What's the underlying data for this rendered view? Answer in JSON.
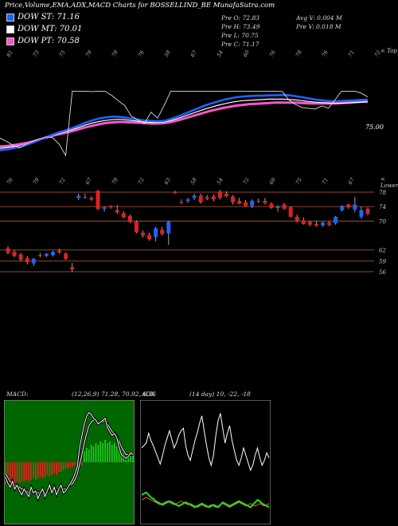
{
  "header": {
    "title": "Price,Volume,EMA,ADX,MACD Charts for BOSSELLIND_BE MunafaSutra.com"
  },
  "legend": [
    {
      "label": "DOW ST: 71.16",
      "color": "#1e63ff"
    },
    {
      "label": "DOW MT: 70.01",
      "color": "#ffffff"
    },
    {
      "label": "DOW PT: 70.58",
      "color": "#ff55cc"
    }
  ],
  "stats": {
    "col1": [
      "Pre  O: 72.83",
      "Pre  H: 73.49",
      "Pre  L: 70.75",
      "Pre  C: 71.17"
    ],
    "col2": [
      "Avg V: 0.004  M",
      "Pre  V: 0.018  M"
    ]
  },
  "labels": {
    "top_right": "< Top",
    "lower_right": "< Lower",
    "price_tag": "75.00",
    "top_numbers": [
      "81",
      "73",
      "75",
      "79",
      "78",
      "76",
      "58",
      "67",
      "54",
      "60",
      "76",
      "78",
      "76",
      "71",
      "72"
    ],
    "mid_numbers": [
      "76",
      "79",
      "72",
      "67",
      "78",
      "72",
      "63",
      "58",
      "54",
      "72",
      "69",
      "75",
      "71",
      "67"
    ]
  },
  "price_levels": [
    "78",
    "74",
    "70",
    "62",
    "59",
    "56"
  ],
  "macd": {
    "title": "MACD: ",
    "params": "(12,26,9) 71.28, 70.92, 0.36"
  },
  "adx": {
    "title": "ADX",
    "params": "(14 day) 10, -22, -18"
  },
  "colors": {
    "up": "#1e63ff",
    "down": "#e02020",
    "ema_short": "#1e63ff",
    "ema_mid": "#ffffff",
    "ema_long": "#ff55cc",
    "macd_pos": "#22cc22",
    "macd_neg": "#ee2222"
  },
  "chart_data": {
    "type": "candlestick",
    "ylim": [
      54,
      80
    ],
    "candles": [
      {
        "o": 62.5,
        "h": 63.0,
        "l": 60.8,
        "c": 61.2
      },
      {
        "o": 61.5,
        "h": 62.0,
        "l": 60.0,
        "c": 60.3
      },
      {
        "o": 60.8,
        "h": 61.2,
        "l": 58.8,
        "c": 59.3
      },
      {
        "o": 59.8,
        "h": 60.4,
        "l": 58.0,
        "c": 58.6
      },
      {
        "o": 58.3,
        "h": 59.8,
        "l": 57.6,
        "c": 59.6
      },
      {
        "o": 60.6,
        "h": 61.2,
        "l": 60.0,
        "c": 60.3
      },
      {
        "o": 60.4,
        "h": 61.2,
        "l": 60.0,
        "c": 60.9
      },
      {
        "o": 60.6,
        "h": 61.8,
        "l": 60.2,
        "c": 61.5
      },
      {
        "o": 61.8,
        "h": 62.4,
        "l": 61.0,
        "c": 61.3
      },
      {
        "o": 61.0,
        "h": 61.4,
        "l": 59.2,
        "c": 59.6
      },
      {
        "o": 57.3,
        "h": 58.4,
        "l": 56.0,
        "c": 56.6
      },
      {
        "o": 76.4,
        "h": 77.6,
        "l": 75.8,
        "c": 77.0
      },
      {
        "o": 76.6,
        "h": 77.6,
        "l": 76.2,
        "c": 76.6
      },
      {
        "o": 76.4,
        "h": 76.8,
        "l": 75.6,
        "c": 75.9
      },
      {
        "o": 78.4,
        "h": 78.6,
        "l": 73.0,
        "c": 73.4
      },
      {
        "o": 73.4,
        "h": 74.0,
        "l": 72.6,
        "c": 73.8
      },
      {
        "o": 74.2,
        "h": 74.4,
        "l": 73.4,
        "c": 73.8
      },
      {
        "o": 73.0,
        "h": 74.4,
        "l": 72.0,
        "c": 72.4
      },
      {
        "o": 72.2,
        "h": 72.8,
        "l": 70.8,
        "c": 71.0
      },
      {
        "o": 71.4,
        "h": 71.8,
        "l": 69.4,
        "c": 69.7
      },
      {
        "o": 69.8,
        "h": 70.2,
        "l": 66.6,
        "c": 66.9
      },
      {
        "o": 66.8,
        "h": 67.4,
        "l": 65.4,
        "c": 66.0
      },
      {
        "o": 66.2,
        "h": 66.8,
        "l": 64.6,
        "c": 65.0
      },
      {
        "o": 65.6,
        "h": 68.4,
        "l": 64.4,
        "c": 68.0
      },
      {
        "o": 67.6,
        "h": 68.4,
        "l": 66.0,
        "c": 66.4
      },
      {
        "o": 66.6,
        "h": 70.0,
        "l": 63.4,
        "c": 69.8
      },
      {
        "o": 78.0,
        "h": 78.4,
        "l": 77.5,
        "c": 77.8
      },
      {
        "o": 75.2,
        "h": 76.0,
        "l": 74.8,
        "c": 75.0
      },
      {
        "o": 75.6,
        "h": 76.4,
        "l": 75.0,
        "c": 76.0
      },
      {
        "o": 76.4,
        "h": 77.6,
        "l": 75.8,
        "c": 77.0
      },
      {
        "o": 77.0,
        "h": 77.6,
        "l": 74.8,
        "c": 75.2
      },
      {
        "o": 76.6,
        "h": 77.2,
        "l": 75.8,
        "c": 76.2
      },
      {
        "o": 76.8,
        "h": 77.4,
        "l": 75.4,
        "c": 76.0
      },
      {
        "o": 78.2,
        "h": 78.6,
        "l": 76.0,
        "c": 76.4
      },
      {
        "o": 77.6,
        "h": 78.2,
        "l": 76.6,
        "c": 76.8
      },
      {
        "o": 76.8,
        "h": 77.2,
        "l": 74.6,
        "c": 75.2
      },
      {
        "o": 75.6,
        "h": 76.4,
        "l": 74.6,
        "c": 74.8
      },
      {
        "o": 75.2,
        "h": 75.8,
        "l": 74.0,
        "c": 74.2
      },
      {
        "o": 74.2,
        "h": 76.0,
        "l": 73.6,
        "c": 75.6
      },
      {
        "o": 75.6,
        "h": 76.2,
        "l": 75.0,
        "c": 75.4
      },
      {
        "o": 75.6,
        "h": 76.4,
        "l": 74.6,
        "c": 75.0
      },
      {
        "o": 74.8,
        "h": 75.2,
        "l": 73.4,
        "c": 73.6
      },
      {
        "o": 73.6,
        "h": 74.4,
        "l": 72.6,
        "c": 74.0
      },
      {
        "o": 74.6,
        "h": 75.0,
        "l": 73.2,
        "c": 73.4
      },
      {
        "o": 73.8,
        "h": 74.0,
        "l": 71.0,
        "c": 71.2
      },
      {
        "o": 71.2,
        "h": 71.8,
        "l": 69.6,
        "c": 70.0
      },
      {
        "o": 70.2,
        "h": 71.0,
        "l": 69.0,
        "c": 69.2
      },
      {
        "o": 69.8,
        "h": 70.0,
        "l": 68.6,
        "c": 69.0
      },
      {
        "o": 69.2,
        "h": 70.0,
        "l": 68.4,
        "c": 68.8
      },
      {
        "o": 68.8,
        "h": 69.8,
        "l": 68.4,
        "c": 69.6
      },
      {
        "o": 69.6,
        "h": 70.0,
        "l": 68.6,
        "c": 69.0
      },
      {
        "o": 69.4,
        "h": 71.4,
        "l": 69.0,
        "c": 71.2
      },
      {
        "o": 73.0,
        "h": 74.4,
        "l": 72.6,
        "c": 74.2
      },
      {
        "o": 74.6,
        "h": 74.8,
        "l": 73.4,
        "c": 73.8
      },
      {
        "o": 73.2,
        "h": 76.6,
        "l": 72.4,
        "c": 74.6
      },
      {
        "o": 71.2,
        "h": 74.0,
        "l": 70.6,
        "c": 73.0
      },
      {
        "o": 73.4,
        "h": 73.8,
        "l": 71.6,
        "c": 72.0
      }
    ],
    "ema_short": [
      58,
      58.2,
      58.5,
      58.9,
      59.4,
      60,
      60.7,
      61.4,
      62.1,
      62.7,
      63.2,
      63.8,
      64.5,
      65.2,
      65.8,
      66.3,
      66.6,
      66.8,
      66.8,
      66.6,
      66.3,
      66,
      65.8,
      65.7,
      65.6,
      65.7,
      66.2,
      66.8,
      67.5,
      68.2,
      68.9,
      69.6,
      70.2,
      70.7,
      71.2,
      71.6,
      71.9,
      72.1,
      72.2,
      72.3,
      72.3,
      72.4,
      72.4,
      72.5,
      72.4,
      72.2,
      71.9,
      71.6,
      71.3,
      71.1,
      70.9,
      70.8,
      70.9,
      71.0,
      71.1,
      71.2,
      71.3
    ],
    "ema_mid": [
      58.5,
      58.7,
      58.9,
      59.2,
      59.6,
      60.1,
      60.7,
      61.3,
      61.9,
      62.4,
      62.9,
      63.4,
      64,
      64.6,
      65.1,
      65.5,
      65.8,
      66,
      66.1,
      66,
      65.8,
      65.6,
      65.4,
      65.3,
      65.3,
      65.4,
      65.8,
      66.3,
      66.9,
      67.5,
      68.1,
      68.7,
      69.2,
      69.7,
      70.1,
      70.5,
      70.8,
      71,
      71.1,
      71.2,
      71.3,
      71.4,
      71.4,
      71.4,
      71.3,
      71.2,
      71,
      70.8,
      70.6,
      70.5,
      70.4,
      70.3,
      70.3,
      70.4,
      70.5,
      70.6,
      70.7
    ],
    "ema_long": [
      59,
      59.1,
      59.3,
      59.6,
      59.9,
      60.3,
      60.8,
      61.3,
      61.8,
      62.2,
      62.6,
      63,
      63.5,
      64,
      64.4,
      64.8,
      65.1,
      65.3,
      65.4,
      65.4,
      65.3,
      65.2,
      65.1,
      65,
      65,
      65.1,
      65.4,
      65.8,
      66.3,
      66.8,
      67.3,
      67.8,
      68.3,
      68.7,
      69.1,
      69.4,
      69.7,
      69.9,
      70.1,
      70.2,
      70.3,
      70.4,
      70.5,
      70.5,
      70.5,
      70.5,
      70.4,
      70.3,
      70.3,
      70.3,
      70.3,
      70.3,
      70.4,
      70.5,
      70.6,
      70.7,
      70.8
    ],
    "macd_hist": [
      -14,
      -14,
      -13,
      -14,
      -13,
      -12,
      -13,
      -12,
      -12,
      -11,
      -12,
      -11,
      -10,
      -11,
      -10,
      -9,
      -10,
      -9,
      -8,
      -9,
      -8,
      -7,
      -8,
      -6,
      -6,
      -5,
      -4,
      -4,
      -3,
      -3,
      -2,
      -2,
      -3,
      -2,
      7,
      9,
      8,
      11,
      10,
      12,
      11,
      13,
      12,
      14,
      12,
      13,
      11,
      12,
      10,
      11,
      9,
      7,
      6,
      5,
      4,
      4
    ],
    "macd_line": [
      -8,
      -11,
      -13,
      -10,
      -14,
      -12,
      -15,
      -17,
      -14,
      -16,
      -18,
      -13,
      -16,
      -15,
      -19,
      -16,
      -14,
      -18,
      -15,
      -12,
      -16,
      -13,
      -17,
      -14,
      -12,
      -16,
      -15,
      -13,
      -11,
      -9,
      -6,
      -2,
      8,
      14,
      20,
      24,
      26,
      25,
      23,
      22,
      20,
      21,
      22,
      23,
      18,
      16,
      14,
      15,
      13,
      8,
      4,
      3,
      2,
      3,
      5,
      4
    ],
    "macd_signal": [
      -6,
      -8,
      -10,
      -11,
      -12,
      -12,
      -13,
      -14,
      -14,
      -15,
      -16,
      -15,
      -15,
      -15,
      -16,
      -16,
      -15,
      -16,
      -15,
      -14,
      -15,
      -14,
      -15,
      -14,
      -13,
      -14,
      -14,
      -13,
      -12,
      -11,
      -9,
      -6,
      -1,
      4,
      10,
      15,
      19,
      21,
      22,
      22,
      21,
      21,
      21,
      22,
      20,
      18,
      16,
      15,
      14,
      11,
      8,
      6,
      4,
      4,
      4,
      4
    ],
    "adx_di_plus": [
      58,
      60,
      62,
      70,
      64,
      60,
      55,
      50,
      45,
      52,
      60,
      66,
      72,
      65,
      58,
      62,
      68,
      72,
      74,
      60,
      52,
      48,
      56,
      64,
      70,
      78,
      84,
      72,
      60,
      50,
      44,
      52,
      68,
      80,
      86,
      74,
      62,
      70,
      76,
      64,
      56,
      48,
      44,
      50,
      58,
      52,
      46,
      40,
      44,
      52,
      58,
      50,
      44,
      48,
      54,
      50
    ],
    "adx_di_minus": [
      16,
      17,
      18,
      17,
      16,
      15,
      14,
      13,
      12,
      13,
      14,
      15,
      14,
      13,
      12,
      13,
      14,
      15,
      14,
      13,
      12,
      13,
      12,
      11,
      10,
      11,
      12,
      11,
      10,
      11,
      12,
      11,
      10,
      11,
      12,
      13,
      12,
      11,
      10,
      11,
      12,
      13,
      14,
      13,
      12,
      11,
      12,
      13,
      12,
      11,
      12,
      13,
      12,
      11,
      12,
      13
    ],
    "adx_line": [
      20,
      21,
      22,
      20,
      18,
      17,
      15,
      14,
      13,
      12,
      13,
      14,
      15,
      14,
      13,
      12,
      11,
      12,
      13,
      14,
      13,
      12,
      11,
      10,
      11,
      12,
      13,
      12,
      11,
      10,
      11,
      12,
      11,
      10,
      12,
      14,
      13,
      12,
      11,
      12,
      13,
      14,
      15,
      14,
      13,
      12,
      11,
      10,
      12,
      14,
      16,
      15,
      13,
      12,
      11,
      10
    ]
  }
}
